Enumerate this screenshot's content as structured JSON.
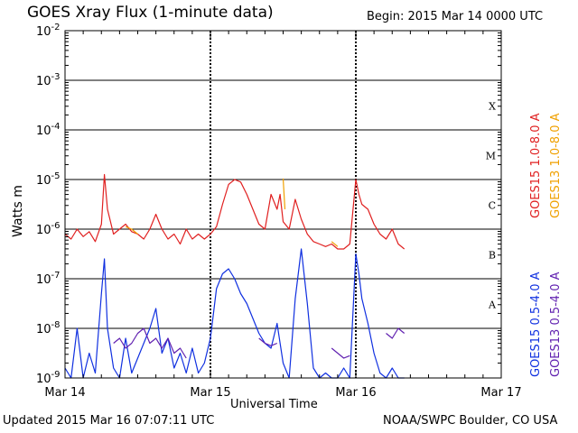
{
  "header": {
    "title": "GOES Xray Flux (1-minute data)",
    "begin": "Begin:  2015 Mar 14 0000 UTC"
  },
  "footer": {
    "updated": "Updated 2015 Mar 16 07:07:11 UTC",
    "credit": "NOAA/SWPC Boulder, CO USA"
  },
  "chart_data": {
    "type": "line",
    "title": "GOES Xray Flux (1-minute data)",
    "xlabel": "Universal Time",
    "ylabel": "Watts m",
    "ylabel_sup": "-2",
    "yscale": "log",
    "ylim": [
      1e-09,
      0.01
    ],
    "xlim": [
      "Mar 14",
      "Mar 17"
    ],
    "x_unit": "hours from 2015 Mar 14 0000 UTC",
    "xticks": [
      {
        "label": "Mar 14",
        "x": 0
      },
      {
        "label": "Mar 15",
        "x": 24
      },
      {
        "label": "Mar 16",
        "x": 48
      },
      {
        "label": "Mar 17",
        "x": 72
      }
    ],
    "yticks": [
      {
        "label": "10",
        "exp": "-9",
        "v": -9
      },
      {
        "label": "10",
        "exp": "-8",
        "v": -8
      },
      {
        "label": "10",
        "exp": "-7",
        "v": -7
      },
      {
        "label": "10",
        "exp": "-6",
        "v": -6
      },
      {
        "label": "10",
        "exp": "-5",
        "v": -5
      },
      {
        "label": "10",
        "exp": "-4",
        "v": -4
      },
      {
        "label": "10",
        "exp": "-3",
        "v": -3
      },
      {
        "label": "10",
        "exp": "-2",
        "v": -2
      }
    ],
    "flare_classes": [
      {
        "label": "A",
        "v": -7.5
      },
      {
        "label": "B",
        "v": -6.5
      },
      {
        "label": "C",
        "v": -5.5
      },
      {
        "label": "M",
        "v": -4.5
      },
      {
        "label": "X",
        "v": -3.5
      }
    ],
    "grid_y": true,
    "legend_position": "right",
    "series": [
      {
        "name": "GOES15 1.0-8.0 A",
        "color": "#e02020",
        "points": [
          [
            0,
            -6.1
          ],
          [
            1,
            -6.2
          ],
          [
            2,
            -6.0
          ],
          [
            3,
            -6.15
          ],
          [
            4,
            -6.05
          ],
          [
            5,
            -6.25
          ],
          [
            6,
            -5.9
          ],
          [
            6.5,
            -4.9
          ],
          [
            7,
            -5.6
          ],
          [
            8,
            -6.1
          ],
          [
            9,
            -6.0
          ],
          [
            10,
            -5.9
          ],
          [
            11,
            -6.05
          ],
          [
            12,
            -6.1
          ],
          [
            13,
            -6.2
          ],
          [
            14,
            -6.0
          ],
          [
            15,
            -5.7
          ],
          [
            16,
            -6.0
          ],
          [
            17,
            -6.2
          ],
          [
            18,
            -6.1
          ],
          [
            19,
            -6.3
          ],
          [
            20,
            -6.0
          ],
          [
            21,
            -6.2
          ],
          [
            22,
            -6.1
          ],
          [
            23,
            -6.2
          ],
          [
            24,
            -6.1
          ],
          [
            25,
            -5.95
          ],
          [
            26,
            -5.5
          ],
          [
            27,
            -5.1
          ],
          [
            28,
            -5.0
          ],
          [
            29,
            -5.05
          ],
          [
            30,
            -5.3
          ],
          [
            31,
            -5.6
          ],
          [
            32,
            -5.9
          ],
          [
            33,
            -6.0
          ],
          [
            34,
            -5.3
          ],
          [
            35,
            -5.6
          ],
          [
            35.5,
            -5.3
          ],
          [
            36,
            -5.85
          ],
          [
            37,
            -6.0
          ],
          [
            38,
            -5.4
          ],
          [
            39,
            -5.8
          ],
          [
            40,
            -6.1
          ],
          [
            41,
            -6.25
          ],
          [
            42,
            -6.3
          ],
          [
            43,
            -6.35
          ],
          [
            44,
            -6.3
          ],
          [
            45,
            -6.4
          ],
          [
            46,
            -6.4
          ],
          [
            47,
            -6.3
          ],
          [
            48,
            -5.0
          ],
          [
            48.5,
            -5.3
          ],
          [
            49,
            -5.5
          ],
          [
            50,
            -5.6
          ],
          [
            51,
            -5.9
          ],
          [
            52,
            -6.1
          ],
          [
            53,
            -6.2
          ],
          [
            54,
            -6.0
          ],
          [
            55,
            -6.3
          ],
          [
            56,
            -6.4
          ]
        ]
      },
      {
        "name": "GOES13 1.0-8.0 A",
        "color": "#f0a000",
        "points": [
          [
            10,
            -5.95
          ],
          [
            11,
            -6.0
          ],
          [
            12,
            -6.1
          ],
          [
            36,
            -4.98
          ],
          [
            36.3,
            -5.6
          ],
          [
            44,
            -6.25
          ],
          [
            45,
            -6.35
          ]
        ]
      },
      {
        "name": "GOES15 0.5-4.0 A",
        "color": "#1030e0",
        "points": [
          [
            0,
            -8.8
          ],
          [
            1,
            -9.0
          ],
          [
            2,
            -8.0
          ],
          [
            3,
            -9.0
          ],
          [
            4,
            -8.5
          ],
          [
            5,
            -8.9
          ],
          [
            6,
            -7.3
          ],
          [
            6.5,
            -6.6
          ],
          [
            7,
            -8.0
          ],
          [
            8,
            -8.8
          ],
          [
            9,
            -9.0
          ],
          [
            10,
            -8.2
          ],
          [
            11,
            -8.9
          ],
          [
            12,
            -8.6
          ],
          [
            13,
            -8.3
          ],
          [
            14,
            -8.0
          ],
          [
            15,
            -7.6
          ],
          [
            16,
            -8.5
          ],
          [
            17,
            -8.2
          ],
          [
            18,
            -8.8
          ],
          [
            19,
            -8.5
          ],
          [
            20,
            -8.9
          ],
          [
            21,
            -8.4
          ],
          [
            22,
            -8.9
          ],
          [
            23,
            -8.7
          ],
          [
            24,
            -8.2
          ],
          [
            25,
            -7.2
          ],
          [
            26,
            -6.9
          ],
          [
            27,
            -6.8
          ],
          [
            28,
            -7.0
          ],
          [
            29,
            -7.3
          ],
          [
            30,
            -7.5
          ],
          [
            31,
            -7.8
          ],
          [
            32,
            -8.1
          ],
          [
            33,
            -8.3
          ],
          [
            34,
            -8.4
          ],
          [
            35,
            -7.9
          ],
          [
            36,
            -8.7
          ],
          [
            37,
            -9.0
          ],
          [
            38,
            -7.4
          ],
          [
            39,
            -6.4
          ],
          [
            40,
            -7.5
          ],
          [
            41,
            -8.8
          ],
          [
            42,
            -9.0
          ],
          [
            43,
            -8.9
          ],
          [
            44,
            -9.0
          ],
          [
            45,
            -9.0
          ],
          [
            46,
            -8.8
          ],
          [
            47,
            -9.0
          ],
          [
            48,
            -6.5
          ],
          [
            48.5,
            -6.9
          ],
          [
            49,
            -7.4
          ],
          [
            50,
            -7.9
          ],
          [
            51,
            -8.5
          ],
          [
            52,
            -8.9
          ],
          [
            53,
            -9.0
          ],
          [
            54,
            -8.8
          ],
          [
            55,
            -9.0
          ],
          [
            56,
            -9.0
          ]
        ]
      },
      {
        "name": "GOES13 0.5-4.0 A",
        "color": "#6020b0",
        "points": [
          [
            8,
            -8.3
          ],
          [
            9,
            -8.2
          ],
          [
            10,
            -8.4
          ],
          [
            11,
            -8.3
          ],
          [
            12,
            -8.1
          ],
          [
            13,
            -8.0
          ],
          [
            14,
            -8.3
          ],
          [
            15,
            -8.2
          ],
          [
            16,
            -8.4
          ],
          [
            17,
            -8.2
          ],
          [
            18,
            -8.5
          ],
          [
            19,
            -8.4
          ],
          [
            20,
            -8.6
          ],
          [
            32,
            -8.2
          ],
          [
            33,
            -8.3
          ],
          [
            34,
            -8.35
          ],
          [
            35,
            -8.3
          ],
          [
            44,
            -8.4
          ],
          [
            45,
            -8.5
          ],
          [
            46,
            -8.6
          ],
          [
            47,
            -8.55
          ],
          [
            53,
            -8.1
          ],
          [
            54,
            -8.2
          ],
          [
            55,
            -8.0
          ],
          [
            56,
            -8.1
          ]
        ]
      }
    ]
  }
}
